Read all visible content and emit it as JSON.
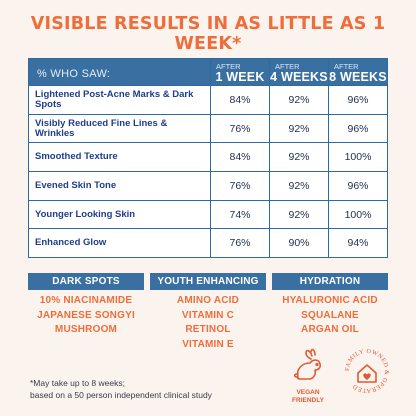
{
  "headline": "VISIBLE RESULTS IN AS LITTLE AS 1 WEEK*",
  "table": {
    "metric_header": "% WHO SAW:",
    "columns": [
      {
        "small": "AFTER",
        "big": "1 WEEK"
      },
      {
        "small": "AFTER",
        "big": "4 WEEKS"
      },
      {
        "small": "AFTER",
        "big": "8 WEEKS"
      }
    ],
    "rows": [
      {
        "metric": "Lightened Post-Acne Marks & Dark Spots",
        "values": [
          "84%",
          "92%",
          "96%"
        ]
      },
      {
        "metric": "Visibly Reduced Fine Lines & Wrinkles",
        "values": [
          "76%",
          "92%",
          "96%"
        ]
      },
      {
        "metric": "Smoothed Texture",
        "values": [
          "84%",
          "92%",
          "100%"
        ]
      },
      {
        "metric": "Evened Skin Tone",
        "values": [
          "76%",
          "92%",
          "96%"
        ]
      },
      {
        "metric": "Younger Looking Skin",
        "values": [
          "74%",
          "92%",
          "100%"
        ]
      },
      {
        "metric": "Enhanced Glow",
        "values": [
          "76%",
          "90%",
          "94%"
        ]
      }
    ]
  },
  "benefits": [
    {
      "title": "DARK SPOTS",
      "items": [
        "10% NIACINAMIDE",
        "JAPANESE SONGYI",
        "MUSHROOM"
      ]
    },
    {
      "title": "YOUTH ENHANCING",
      "items": [
        "AMINO ACID",
        "VITAMIN C",
        "RETINOL",
        "VITAMIN E"
      ]
    },
    {
      "title": "HYDRATION",
      "items": [
        "HYALURONIC ACID",
        "SQUALANE",
        "ARGAN OIL"
      ]
    }
  ],
  "footnote": {
    "line1": "*May take up to 8 weeks;",
    "line2": "based on a 50 person independent clinical study"
  },
  "badges": {
    "vegan_line1": "VEGAN",
    "vegan_line2": "FRIENDLY",
    "family_text": "FAMILY OWNED & OPERATED"
  },
  "colors": {
    "accent_orange": "#ef6d3a",
    "table_blue": "#3a6fa2",
    "metric_navy": "#1f3d8a",
    "background": "#fbf4ee"
  }
}
